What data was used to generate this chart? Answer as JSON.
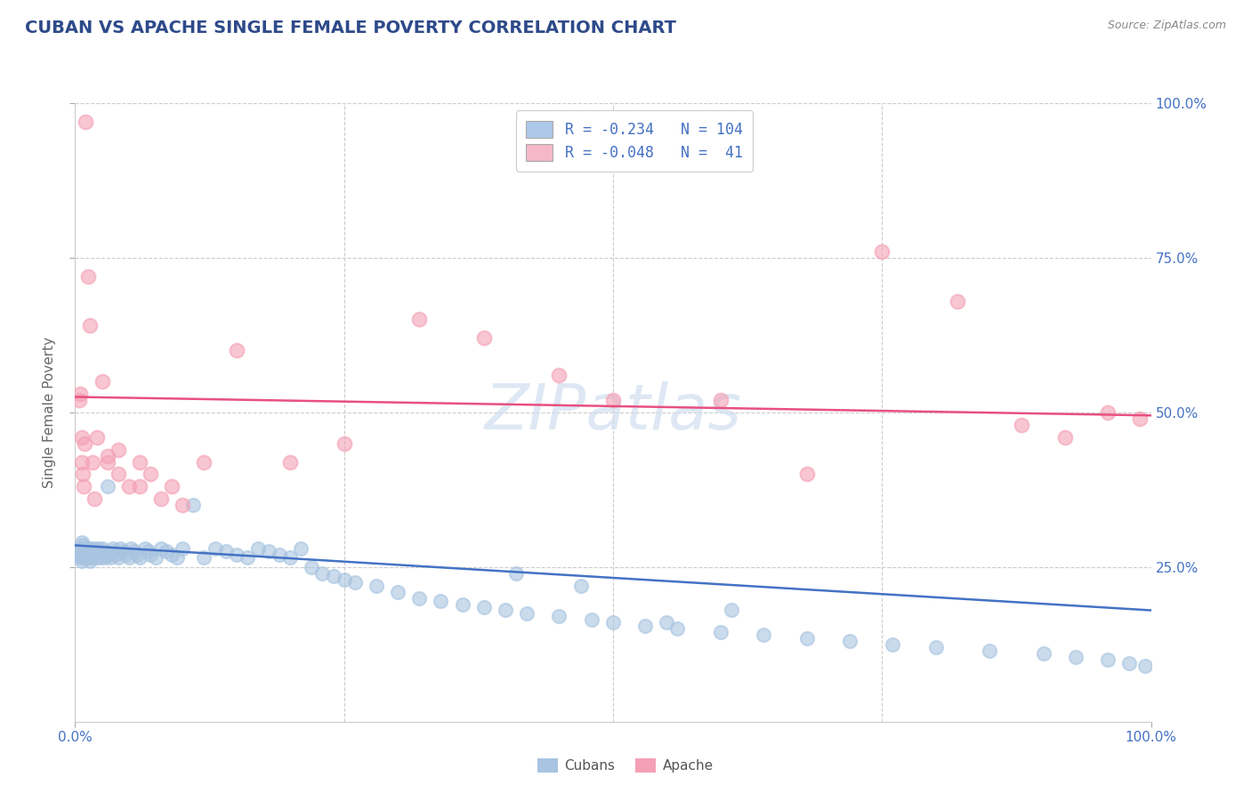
{
  "title": "CUBAN VS APACHE SINGLE FEMALE POVERTY CORRELATION CHART",
  "source": "Source: ZipAtlas.com",
  "ylabel": "Single Female Poverty",
  "xlim": [
    0.0,
    1.0
  ],
  "ylim": [
    0.0,
    1.0
  ],
  "background_color": "#ffffff",
  "grid_color": "#cccccc",
  "watermark_text": "ZIPatlas",
  "legend_text_1": "R = -0.234   N = 104",
  "legend_text_2": "R = -0.048   N =  41",
  "legend_labels": [
    "Cubans",
    "Apache"
  ],
  "blue_scatter_color": "#a8c4e0",
  "pink_scatter_color": "#f4a0b5",
  "blue_line_color": "#4472c4",
  "pink_line_color": "#e85080",
  "title_color": "#2e4a8a",
  "axis_label_color": "#4472c4",
  "tick_label_color": "#888888",
  "source_color": "#888888",
  "blue_legend_color": "#adc8e8",
  "pink_legend_color": "#f5b8c8",
  "cubans_x": [
    0.003,
    0.004,
    0.005,
    0.005,
    0.006,
    0.006,
    0.007,
    0.007,
    0.008,
    0.008,
    0.009,
    0.009,
    0.01,
    0.01,
    0.011,
    0.011,
    0.012,
    0.013,
    0.014,
    0.015,
    0.015,
    0.016,
    0.016,
    0.017,
    0.018,
    0.019,
    0.02,
    0.021,
    0.022,
    0.023,
    0.024,
    0.025,
    0.026,
    0.027,
    0.028,
    0.03,
    0.031,
    0.033,
    0.035,
    0.036,
    0.038,
    0.04,
    0.042,
    0.045,
    0.047,
    0.05,
    0.052,
    0.055,
    0.058,
    0.06,
    0.065,
    0.068,
    0.07,
    0.075,
    0.08,
    0.085,
    0.09,
    0.095,
    0.1,
    0.11,
    0.12,
    0.13,
    0.14,
    0.15,
    0.16,
    0.17,
    0.18,
    0.19,
    0.2,
    0.21,
    0.22,
    0.23,
    0.24,
    0.25,
    0.26,
    0.28,
    0.3,
    0.32,
    0.34,
    0.36,
    0.38,
    0.4,
    0.42,
    0.45,
    0.48,
    0.5,
    0.53,
    0.56,
    0.6,
    0.64,
    0.68,
    0.72,
    0.76,
    0.8,
    0.85,
    0.9,
    0.93,
    0.96,
    0.98,
    0.995,
    0.47,
    0.41,
    0.55,
    0.61
  ],
  "cubans_y": [
    0.27,
    0.275,
    0.28,
    0.265,
    0.29,
    0.26,
    0.275,
    0.285,
    0.27,
    0.265,
    0.28,
    0.275,
    0.27,
    0.265,
    0.28,
    0.275,
    0.27,
    0.265,
    0.26,
    0.275,
    0.28,
    0.27,
    0.265,
    0.28,
    0.275,
    0.27,
    0.265,
    0.28,
    0.275,
    0.27,
    0.265,
    0.28,
    0.275,
    0.27,
    0.265,
    0.38,
    0.27,
    0.265,
    0.28,
    0.275,
    0.27,
    0.265,
    0.28,
    0.275,
    0.27,
    0.265,
    0.28,
    0.275,
    0.27,
    0.265,
    0.28,
    0.275,
    0.27,
    0.265,
    0.28,
    0.275,
    0.27,
    0.265,
    0.28,
    0.35,
    0.265,
    0.28,
    0.275,
    0.27,
    0.265,
    0.28,
    0.275,
    0.27,
    0.265,
    0.28,
    0.25,
    0.24,
    0.235,
    0.23,
    0.225,
    0.22,
    0.21,
    0.2,
    0.195,
    0.19,
    0.185,
    0.18,
    0.175,
    0.17,
    0.165,
    0.16,
    0.155,
    0.15,
    0.145,
    0.14,
    0.135,
    0.13,
    0.125,
    0.12,
    0.115,
    0.11,
    0.105,
    0.1,
    0.095,
    0.09,
    0.22,
    0.24,
    0.16,
    0.18
  ],
  "apache_x": [
    0.004,
    0.005,
    0.006,
    0.006,
    0.007,
    0.008,
    0.009,
    0.01,
    0.012,
    0.014,
    0.016,
    0.018,
    0.02,
    0.025,
    0.03,
    0.04,
    0.05,
    0.06,
    0.07,
    0.09,
    0.12,
    0.15,
    0.2,
    0.25,
    0.32,
    0.38,
    0.45,
    0.5,
    0.6,
    0.68,
    0.75,
    0.82,
    0.88,
    0.92,
    0.96,
    0.99,
    0.03,
    0.04,
    0.06,
    0.08,
    0.1
  ],
  "apache_y": [
    0.52,
    0.53,
    0.46,
    0.42,
    0.4,
    0.38,
    0.45,
    0.97,
    0.72,
    0.64,
    0.42,
    0.36,
    0.46,
    0.55,
    0.43,
    0.4,
    0.38,
    0.42,
    0.4,
    0.38,
    0.42,
    0.6,
    0.42,
    0.45,
    0.65,
    0.62,
    0.56,
    0.52,
    0.52,
    0.4,
    0.76,
    0.68,
    0.48,
    0.46,
    0.5,
    0.49,
    0.42,
    0.44,
    0.38,
    0.36,
    0.35
  ]
}
